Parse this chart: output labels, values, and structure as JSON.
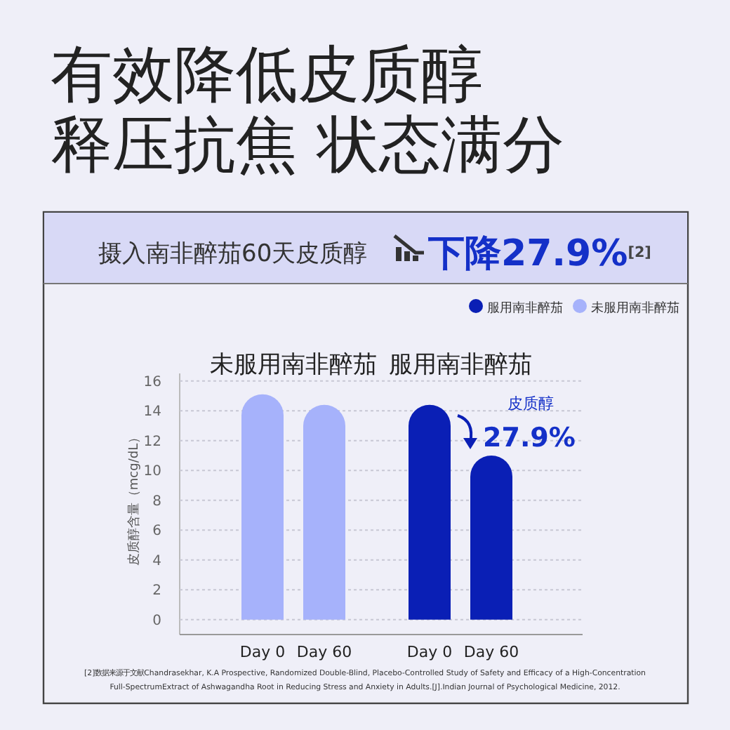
{
  "chart_data": {
    "type": "bar",
    "title": "有效降低皮质醇",
    "subtitle": "释压抗焦 状态满分",
    "ylabel": "皮质醇含量（mcg/dL）",
    "categories": [
      "Day 0",
      "Day 60",
      "Day 0",
      "Day 60"
    ],
    "series": [
      {
        "name": "服用南非醉茄",
        "color": "#0a1fb5",
        "values": [
          null,
          null,
          14.4,
          11.0
        ]
      },
      {
        "name": "未服用南非醉茄",
        "color": "#a6b2fb",
        "values": [
          15.1,
          14.4,
          null,
          null
        ]
      }
    ],
    "ylim": [
      -1,
      16.5
    ],
    "yticks": [
      0,
      2,
      4,
      6,
      8,
      10,
      12,
      14,
      16
    ],
    "grid": "y",
    "legend": "top right",
    "annotations": [
      "摄入南非醉茄60天皮质醇",
      "下降27.9%$^{[2]}$",
      "未服用南非醉茄",
      "服用南非醉茄",
      "皮质醇",
      "27.9%",
      "[2]数据来源于文献Chandrasekhar, K.A Prospective, Randomized Double-Blind, Placebo-Controlled Study of Safety and Efficacy of a High-Concentration",
      "Full-SpectrumExtract of Ashwagandha Root in Reducing Stress and Anxiety in Adults.[J].Indian Journal of Psychological Medicine, 2012."
    ]
  }
}
